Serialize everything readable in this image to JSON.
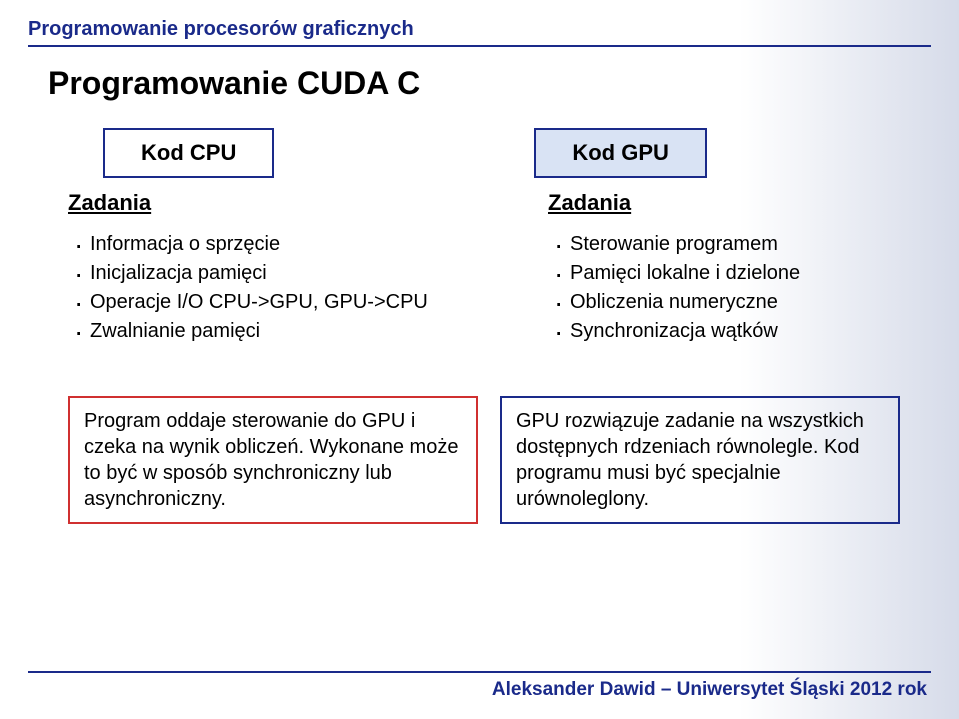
{
  "colors": {
    "title": "#1a2a8a",
    "rule": "#1a2a8a",
    "text": "#000000",
    "box_cpu_border": "#1a2a8a",
    "box_gpu_border": "#1a2a8a",
    "box_gpu_bg": "#d9e3f4",
    "summary_left_border": "#d03030",
    "summary_right_border": "#1a2a8a",
    "bg_grad_from": "#ffffff",
    "bg_grad_to": "#d6dbe9"
  },
  "header": {
    "title": "Programowanie procesorów graficznych"
  },
  "main_title": "Programowanie CUDA C",
  "cpu": {
    "box_label": "Kod CPU",
    "tasks_heading": "Zadania",
    "tasks": [
      "Informacja o sprzęcie",
      "Inicjalizacja pamięci",
      "Operacje I/O CPU->GPU, GPU->CPU",
      "Zwalnianie pamięci"
    ]
  },
  "gpu": {
    "box_label": "Kod GPU",
    "tasks_heading": "Zadania",
    "tasks": [
      "Sterowanie programem",
      "Pamięci lokalne i dzielone",
      "Obliczenia numeryczne",
      "Synchronizacja wątków"
    ]
  },
  "summary": {
    "left": "Program oddaje sterowanie do GPU i czeka na wynik obliczeń. Wykonane może to być w sposób synchroniczny lub asynchroniczny.",
    "right": "GPU rozwiązuje zadanie na wszystkich dostępnych rdzeniach równolegle. Kod programu musi być specjalnie urównoleglony."
  },
  "footer": {
    "text": "Aleksander Dawid – Uniwersytet Śląski 2012 rok"
  }
}
